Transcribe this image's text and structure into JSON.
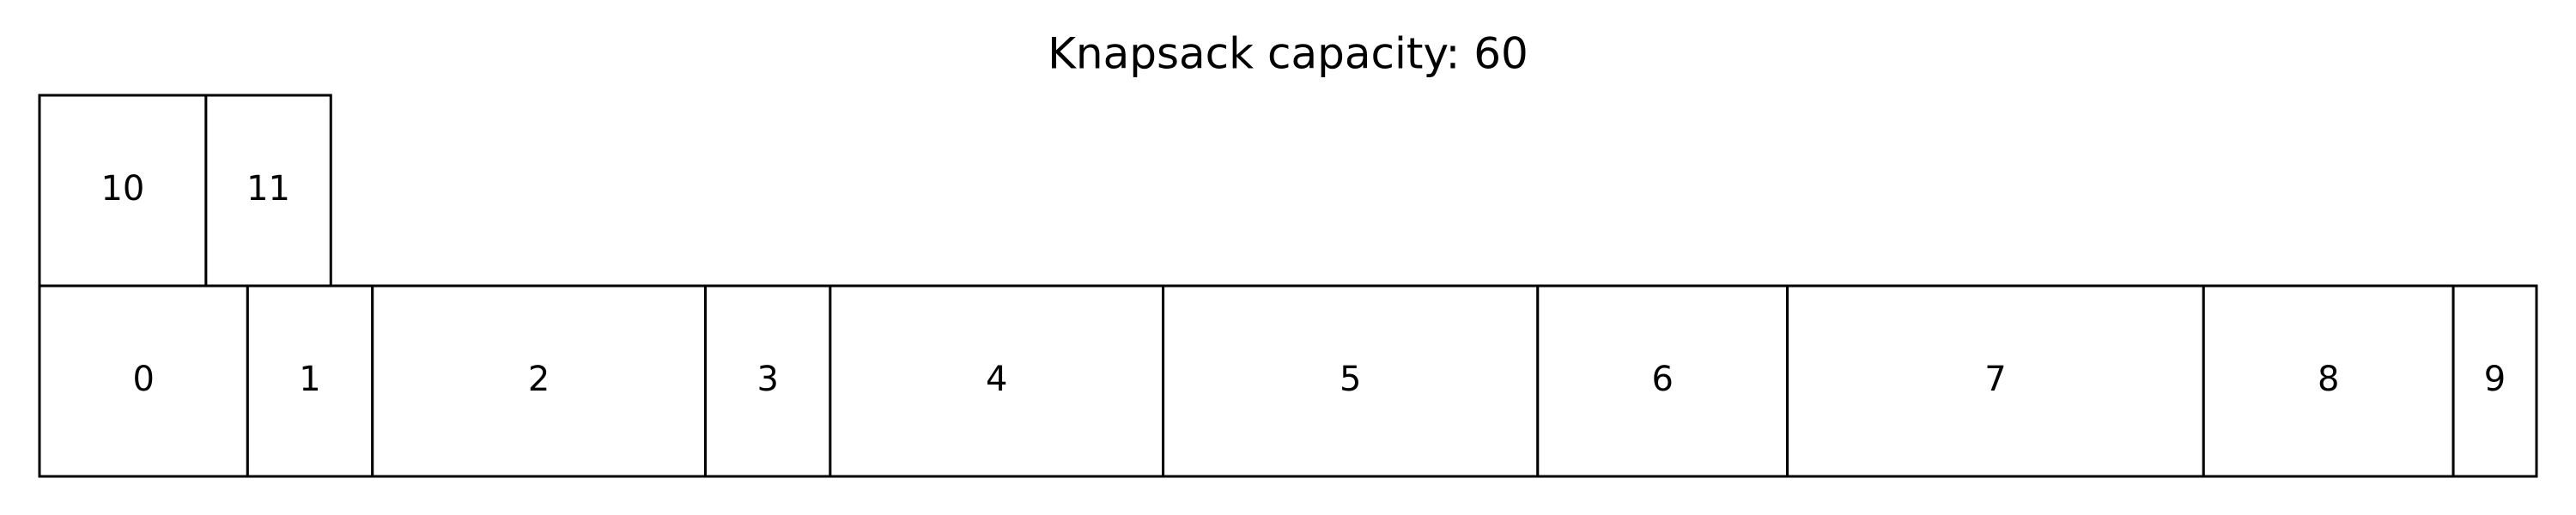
{
  "title": "Knapsack capacity: 60",
  "capacity": 60,
  "rows": [
    {
      "name": "bottom",
      "items": [
        {
          "label": "0",
          "size": 5
        },
        {
          "label": "1",
          "size": 3
        },
        {
          "label": "2",
          "size": 8
        },
        {
          "label": "3",
          "size": 3
        },
        {
          "label": "4",
          "size": 8
        },
        {
          "label": "5",
          "size": 9
        },
        {
          "label": "6",
          "size": 6
        },
        {
          "label": "7",
          "size": 10
        },
        {
          "label": "8",
          "size": 6
        },
        {
          "label": "9",
          "size": 2
        }
      ]
    },
    {
      "name": "top",
      "items": [
        {
          "label": "10",
          "size": 4
        },
        {
          "label": "11",
          "size": 3
        }
      ]
    }
  ]
}
